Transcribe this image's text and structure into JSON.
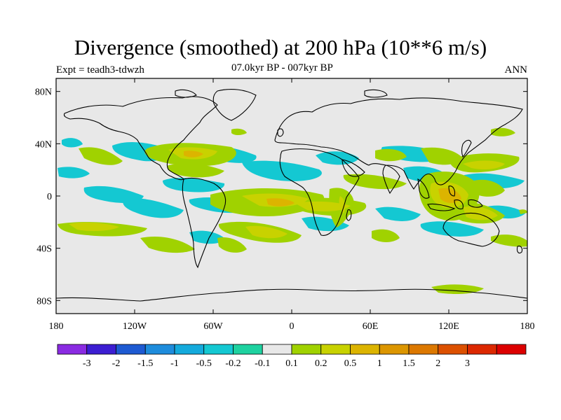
{
  "title": "Divergence (smoothed) at 200 hPa (10**6 m/s)",
  "experiment": "Expt = teadh3-tdwzh",
  "period": "07.0kyr BP - 007kyr BP",
  "season": "ANN",
  "map": {
    "lat_labels": [
      "80N",
      "40N",
      "0",
      "40S",
      "80S"
    ],
    "lon_labels": [
      "180",
      "120W",
      "60W",
      "0",
      "60E",
      "120E",
      "180"
    ],
    "lat_values": [
      80,
      40,
      0,
      -40,
      -80
    ],
    "lon_values": [
      -180,
      -120,
      -60,
      0,
      60,
      120,
      180
    ],
    "background_color": "#e8e8e8"
  },
  "colorbar": {
    "colors": [
      "#8a2be2",
      "#3c1ed2",
      "#1e5ad2",
      "#1e8cdc",
      "#14aadc",
      "#14c8d2",
      "#1ed2a0",
      "#e8e8e8",
      "#a0d200",
      "#c8d200",
      "#dcb400",
      "#dc9600",
      "#dc7800",
      "#dc5000",
      "#dc2800",
      "#dc0000"
    ],
    "labels": [
      "-3",
      "-2",
      "-1.5",
      "-1",
      "-0.5",
      "-0.2",
      "-0.1",
      "0.1",
      "0.2",
      "0.5",
      "1",
      "1.5",
      "2",
      "3"
    ]
  }
}
